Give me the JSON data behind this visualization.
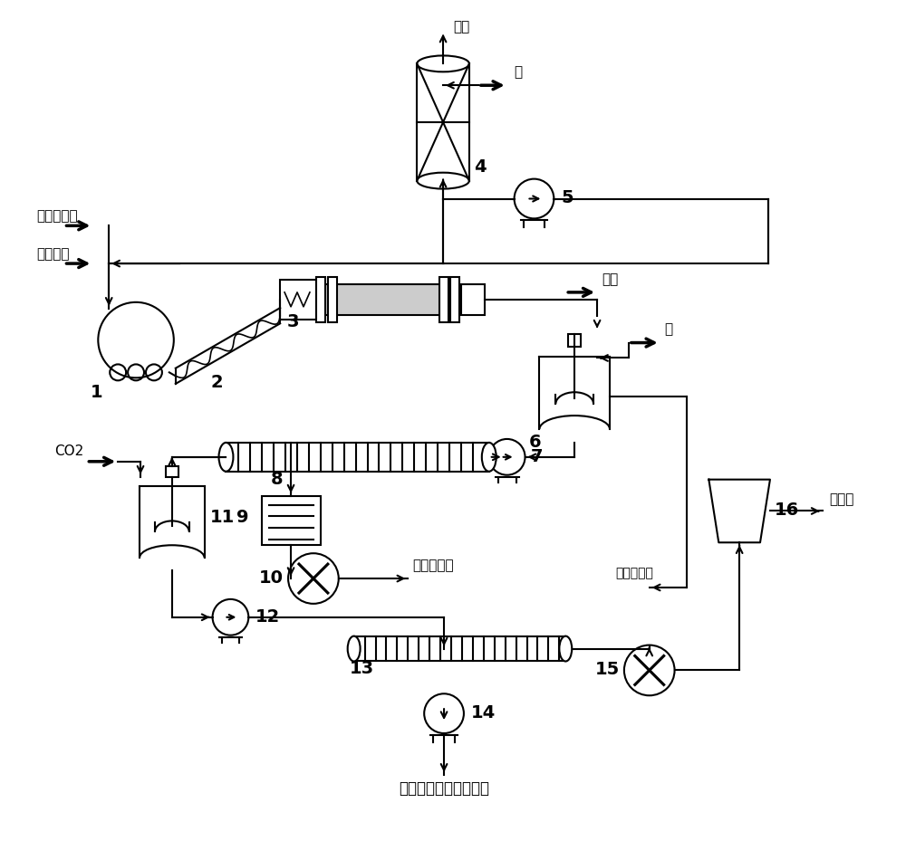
{
  "bg_color": "#ffffff",
  "line_color": "#000000",
  "line_width": 1.5,
  "labels": {
    "bu_chong_tan_suan_na": "补充碳酸钠",
    "fei_pao_guang_fen": "废抛光粉",
    "fang_kong": "放空",
    "shui_top": "水",
    "ran_liao": "燃料",
    "shui_right": "水",
    "co2": "CO2",
    "zai_sheng_pao_guang_fen": "再生抛光粉",
    "zheng_qi_leng_ning_ye": "蒸汽冷凝液",
    "tan_suan_na": "碳酸钠",
    "yang_hua_lv_yu_yang_hua_gui": "氧化铝与氧化硅混合物"
  }
}
